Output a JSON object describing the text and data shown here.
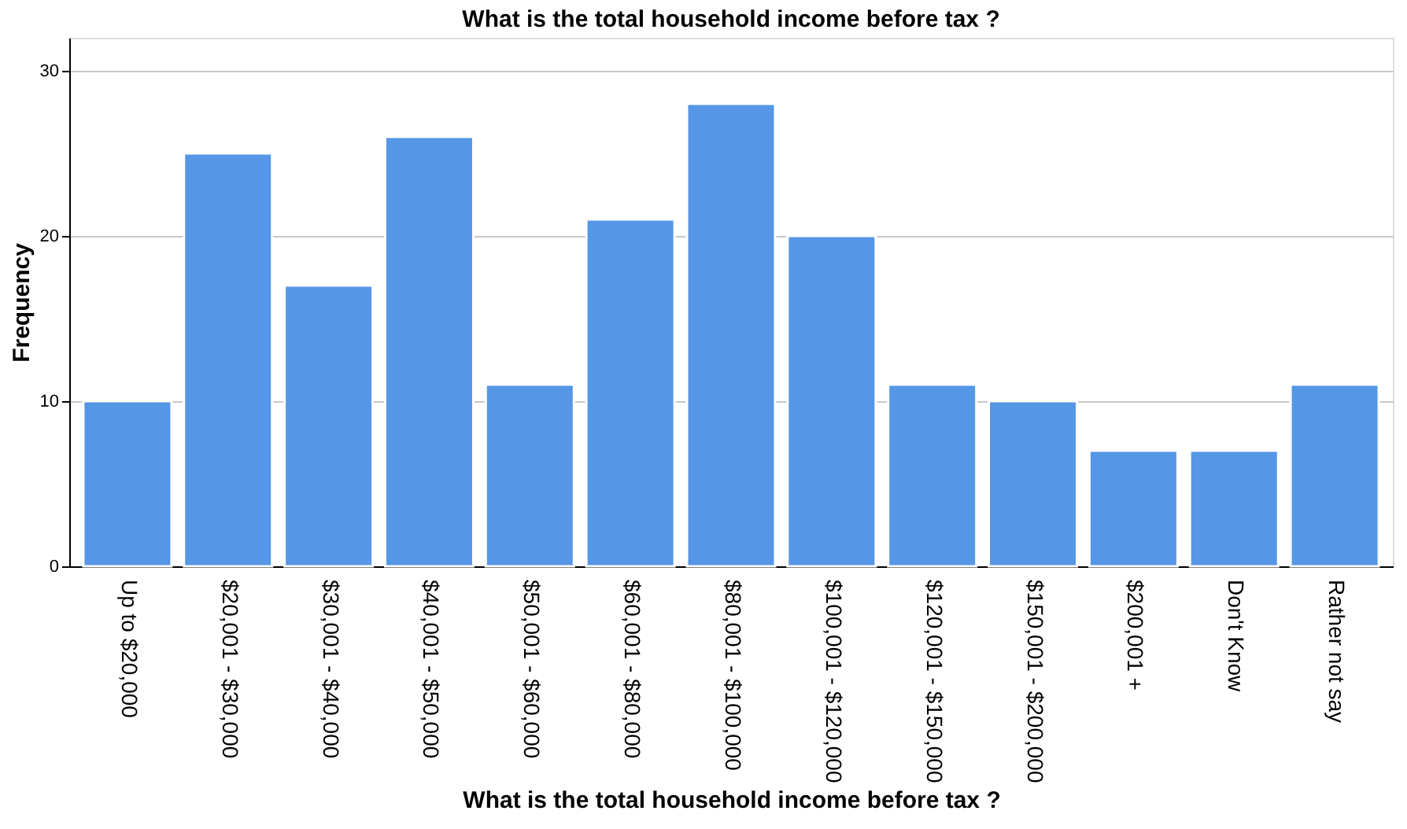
{
  "chart_data": {
    "type": "bar",
    "title": "What is the total household income before tax ?",
    "xlabel": "What is the total household income before tax ?",
    "ylabel": "Frequency",
    "categories": [
      "Up to $20,000",
      "$20,001 - $30,000",
      "$30,001 - $40,000",
      "$40,001 - $50,000",
      "$50,001 - $60,000",
      "$60,001 - $80,000",
      "$80,001 - $100,000",
      "$100,001 - $120,000",
      "$120,001 - $150,000",
      "$150,001 - $200,000",
      "$200,001 +",
      "Don't Know",
      "Rather not say"
    ],
    "values": [
      10,
      25,
      17,
      26,
      11,
      21,
      28,
      20,
      11,
      10,
      7,
      7,
      11
    ],
    "color": "#5596e6",
    "ylim": [
      0,
      32
    ],
    "yticks": [
      0,
      10,
      20,
      30
    ],
    "grid": "y"
  }
}
